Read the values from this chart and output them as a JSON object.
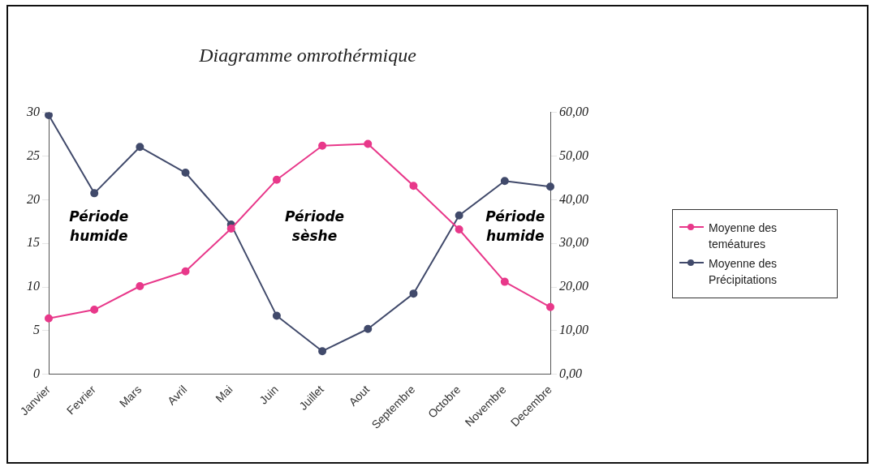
{
  "chart_data": {
    "type": "line",
    "title": "Diagramme omrothérmique",
    "categories": [
      "Janvier",
      "Fevrier",
      "Mars",
      "Avril",
      "Mai",
      "Juin",
      "Juillet",
      "Aout",
      "Septembre",
      "Octobre",
      "Novembre",
      "Decembre"
    ],
    "series": [
      {
        "name": "Moyenne des teméatures",
        "color": "#e8388a",
        "values": [
          6.4,
          7.4,
          10.1,
          11.8,
          16.7,
          22.3,
          26.2,
          26.4,
          21.6,
          16.6,
          10.6,
          7.7
        ]
      },
      {
        "name": "Moyenne des Précipitations",
        "color": "#414a6b",
        "axis": "y2",
        "values": [
          59.4,
          41.5,
          52.1,
          46.2,
          34.3,
          13.4,
          5.3,
          10.4,
          18.5,
          36.4,
          44.3,
          43.0
        ]
      }
    ],
    "ylim": [
      0,
      30
    ],
    "yticks": [
      0,
      5,
      10,
      15,
      20,
      25,
      30
    ],
    "y2lim": [
      0,
      60
    ],
    "y2ticks": [
      {
        "value": 0,
        "label": "0,00"
      },
      {
        "value": 10,
        "label": "10,00"
      },
      {
        "value": 20,
        "label": "20,00"
      },
      {
        "value": 30,
        "label": "30,00"
      },
      {
        "value": 40,
        "label": "40,00"
      },
      {
        "value": 50,
        "label": "50,00"
      },
      {
        "value": 60,
        "label": "60,00"
      }
    ],
    "annotations": [
      "Période humide",
      "Période sèshe",
      "Période humide"
    ],
    "grid": false,
    "legend": "right",
    "marker": "circle",
    "line_style": "solid"
  }
}
